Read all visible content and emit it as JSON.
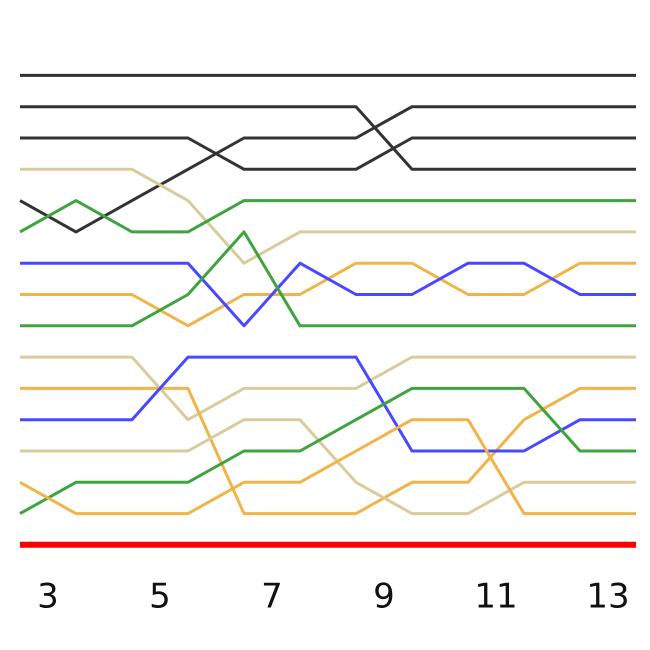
{
  "chart_data": {
    "type": "line",
    "x": [
      2.5,
      3.5,
      4.5,
      5.5,
      6.5,
      7.5,
      8.5,
      9.5,
      10.5,
      11.5,
      12.5,
      13.5
    ],
    "xlim": [
      2.143,
      13.75
    ],
    "xticks": [
      3,
      5,
      7,
      9,
      11,
      13
    ],
    "ylim": [
      19.36,
      -1.41
    ],
    "series": [
      {
        "color": "#333333",
        "values": [
          1,
          1,
          1,
          1,
          1,
          1,
          1,
          1,
          1,
          1,
          1,
          1
        ]
      },
      {
        "color": "#333333",
        "values": [
          2,
          2,
          2,
          2,
          2,
          2,
          2,
          4,
          4,
          4,
          4,
          4
        ]
      },
      {
        "color": "#333333",
        "values": [
          3,
          3,
          3,
          3,
          4,
          4,
          4,
          3,
          3,
          3,
          3,
          3
        ]
      },
      {
        "color": "#333333",
        "values": [
          5,
          6,
          5,
          4,
          3,
          3,
          3,
          2,
          2,
          2,
          2,
          2
        ]
      },
      {
        "color": "#d8cc9c",
        "values": [
          4,
          4,
          4,
          5,
          7,
          6,
          6,
          6,
          6,
          6,
          6,
          6
        ]
      },
      {
        "color": "#3fa33f",
        "values": [
          6,
          5,
          6,
          6,
          5,
          5,
          5,
          5,
          5,
          5,
          5,
          5
        ]
      },
      {
        "color": "#f0b448",
        "values": [
          8,
          8,
          8,
          9,
          8,
          8,
          7,
          7,
          8,
          8,
          7,
          7
        ]
      },
      {
        "color": "#4848ff",
        "values": [
          7,
          7,
          7,
          7,
          9,
          7,
          8,
          8,
          7,
          7,
          8,
          8
        ]
      },
      {
        "color": "#3fa33f",
        "values": [
          9,
          9,
          9,
          8,
          6,
          9,
          9,
          9,
          9,
          9,
          9,
          9
        ]
      },
      {
        "color": "#d8cc9c",
        "values": [
          10,
          10,
          10,
          12,
          11,
          11,
          11,
          10,
          10,
          10,
          10,
          10
        ]
      },
      {
        "color": "#f0b448",
        "values": [
          11,
          11,
          11,
          11,
          15,
          15,
          15,
          14,
          14,
          12,
          11,
          11
        ]
      },
      {
        "color": "#4848ff",
        "values": [
          12,
          12,
          12,
          10,
          10,
          10,
          10,
          13,
          13,
          13,
          12,
          12
        ]
      },
      {
        "color": "#d8cc9c",
        "values": [
          13,
          13,
          13,
          13,
          12,
          12,
          14,
          15,
          15,
          14,
          14,
          14
        ]
      },
      {
        "color": "#3fa33f",
        "values": [
          15,
          14,
          14,
          14,
          13,
          13,
          12,
          11,
          11,
          11,
          13,
          13
        ]
      },
      {
        "color": "#f0b448",
        "values": [
          14,
          15,
          15,
          15,
          14,
          14,
          13,
          12,
          12,
          15,
          15,
          15
        ]
      },
      {
        "color": "#ff0000",
        "values": [
          16,
          16,
          16,
          16,
          16,
          16,
          16,
          16,
          16,
          16,
          16,
          16
        ]
      }
    ]
  }
}
